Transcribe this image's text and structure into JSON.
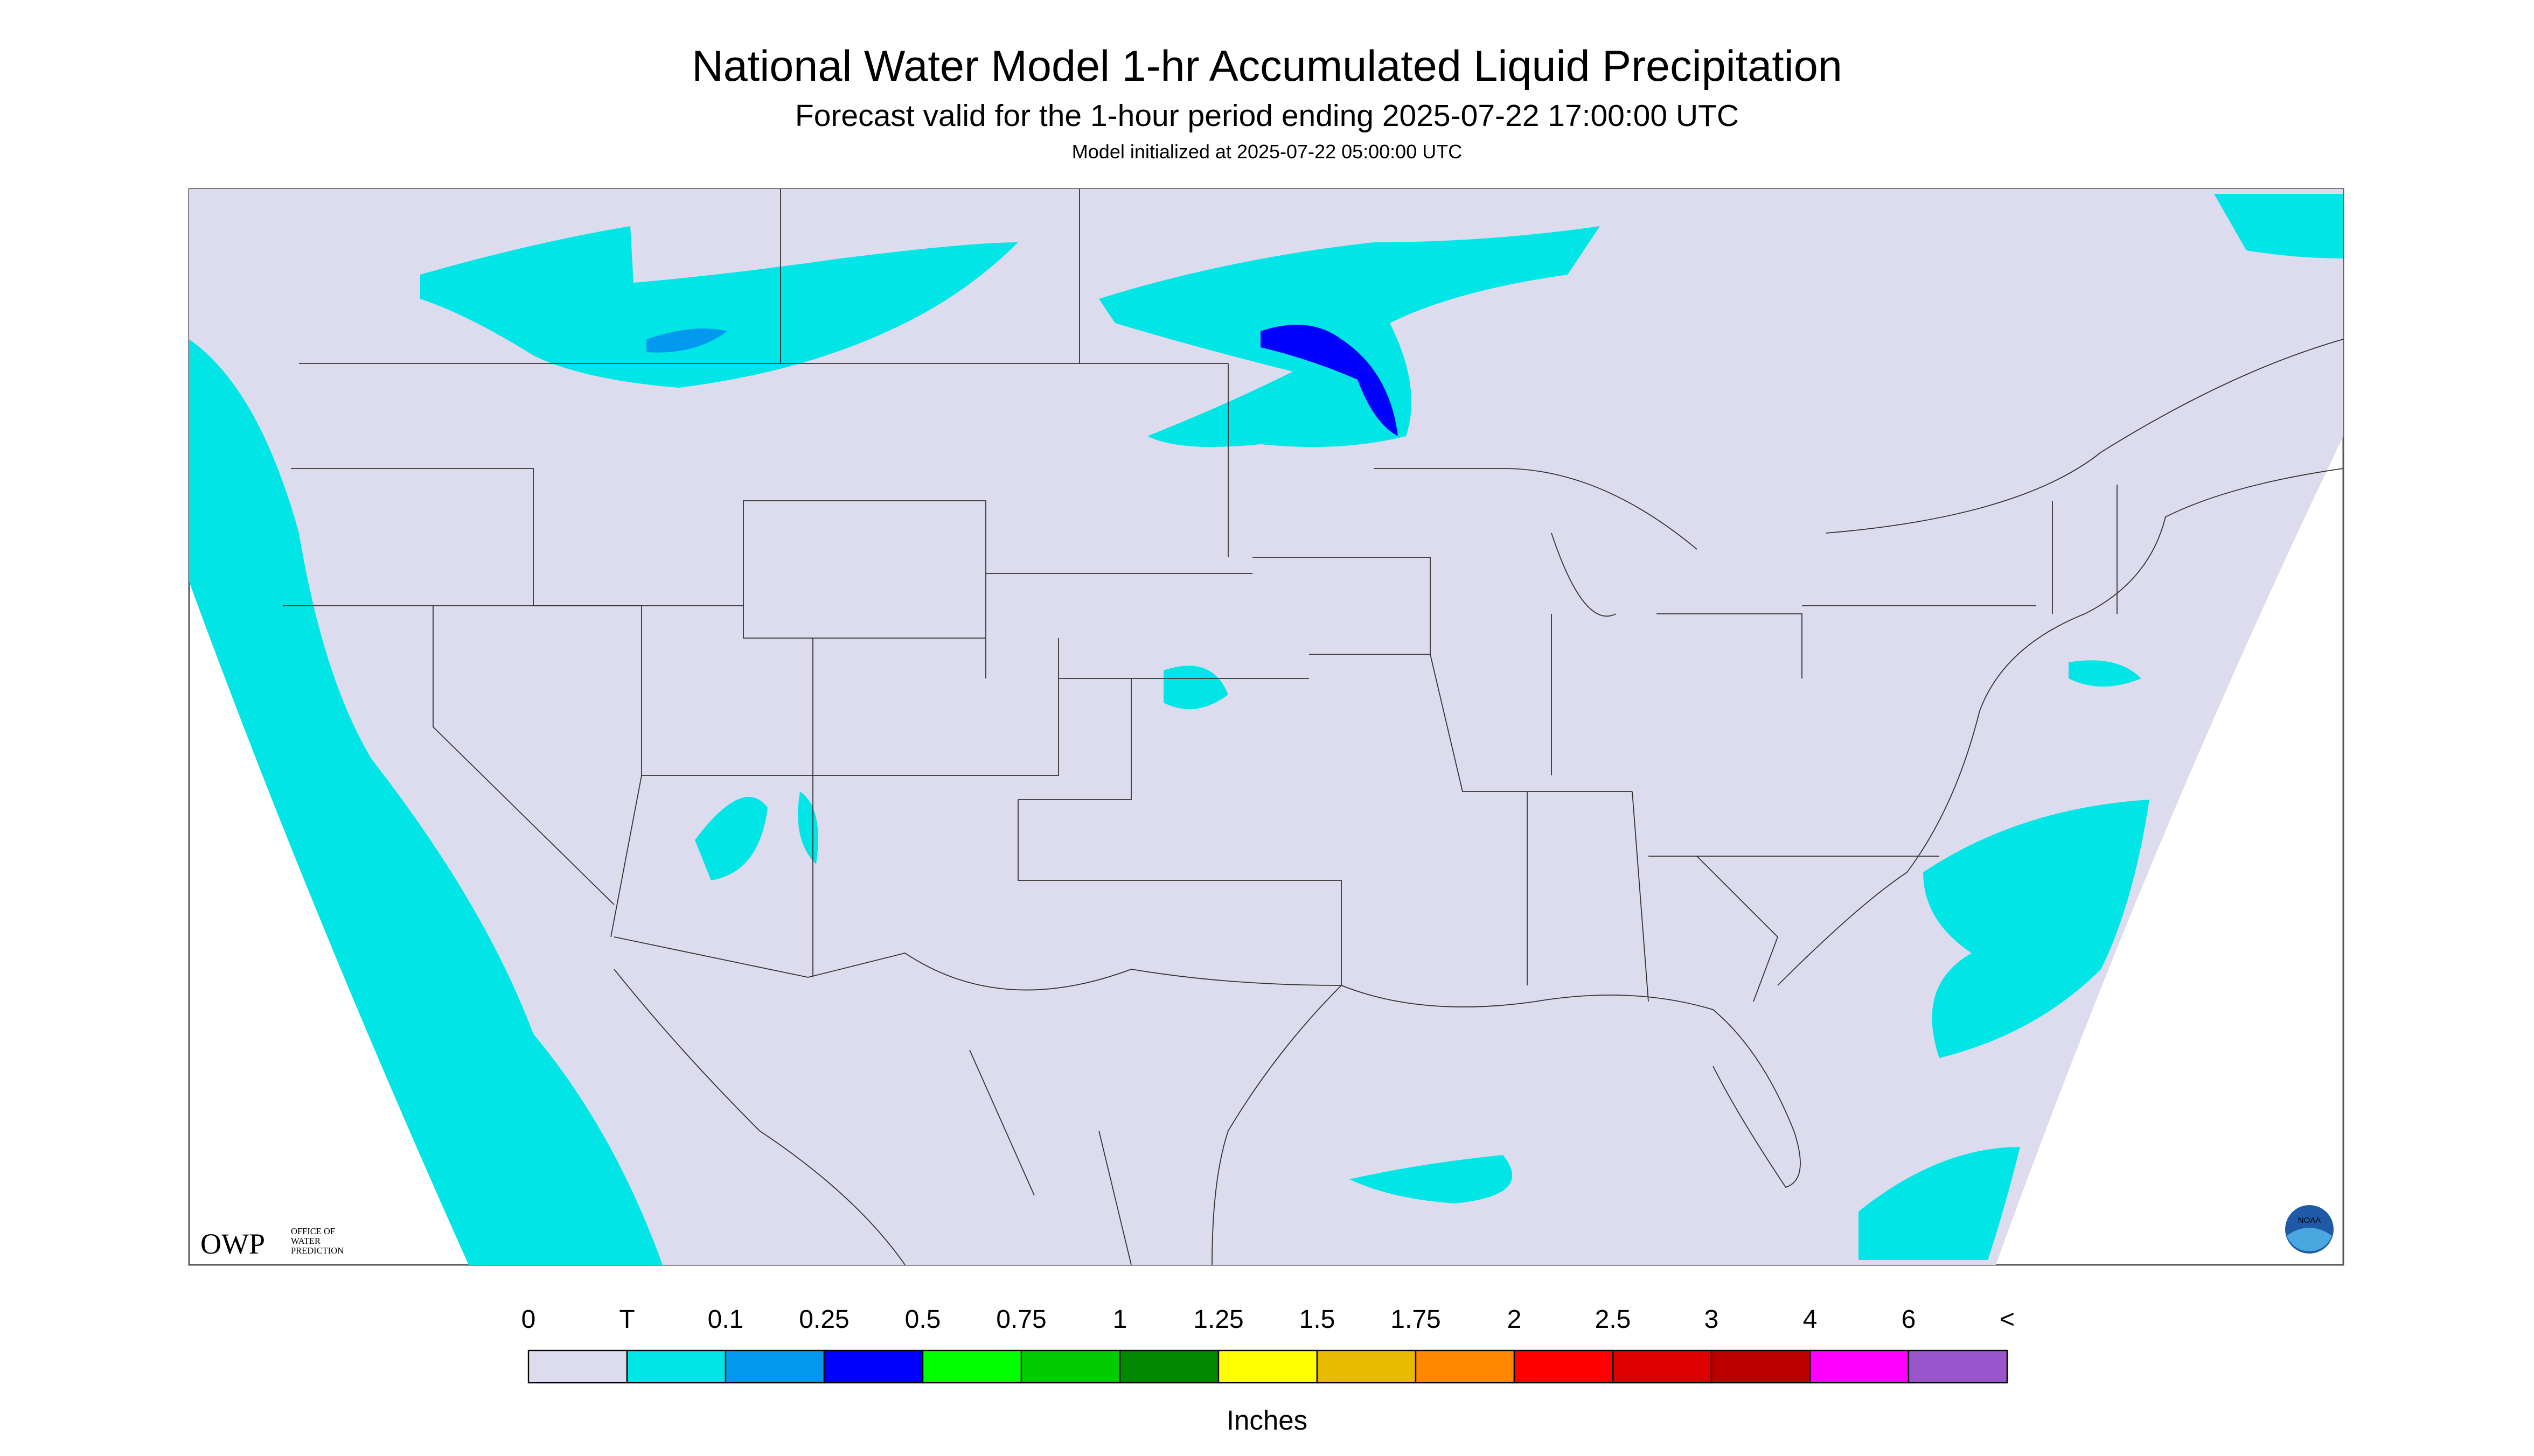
{
  "header": {
    "title": "National Water Model 1-hr Accumulated Liquid Precipitation",
    "subtitle": "Forecast valid for the 1-hour period ending 2025-07-22 17:00:00 UTC",
    "note": "Model initialized at 2025-07-22 05:00:00 UTC"
  },
  "logo": {
    "text": "OWP",
    "line1": "OFFICE OF",
    "line2": "WATER",
    "line3": "PREDICTION",
    "noaa": "NOAA"
  },
  "legend": {
    "labels": [
      "0",
      "T",
      "0.1",
      "0.25",
      "0.5",
      "0.75",
      "1",
      "1.25",
      "1.5",
      "1.75",
      "2",
      "2.5",
      "3",
      "4",
      "6",
      "<"
    ],
    "colors": [
      "#dcdcee",
      "#00e6e6",
      "#0099ee",
      "#0000ff",
      "#00ff00",
      "#00cc00",
      "#008800",
      "#ffff00",
      "#e6bb00",
      "#ff8800",
      "#ff0000",
      "#dd0000",
      "#bb0000",
      "#ff00ff",
      "#9955cc"
    ],
    "unit": "Inches"
  }
}
